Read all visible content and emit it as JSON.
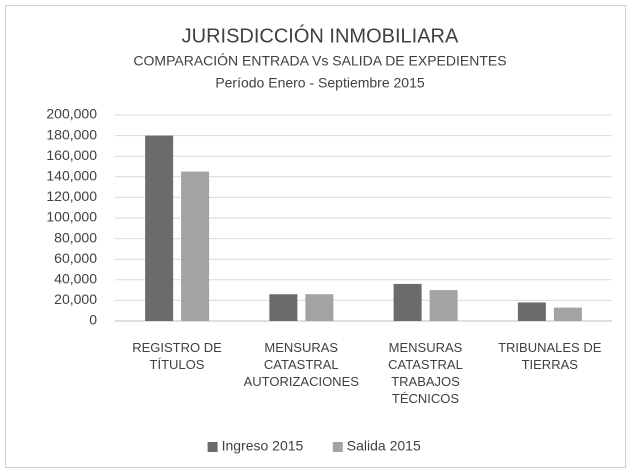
{
  "chart_data": {
    "type": "bar",
    "title": "JURISDICCIÓN INMOBILIARA",
    "subtitle": "COMPARACIÓN ENTRADA Vs SALIDA DE EXPEDIENTES",
    "subtitle2": "Período Enero - Septiembre 2015",
    "categories": [
      "REGISTRO DE\nTÍTULOS",
      "MENSURAS\nCATASTRAL\nAUTORIZACIONES",
      "MENSURAS\nCATASTRAL\nTRABAJOS\nTÉCNICOS",
      "TRIBUNALES DE\nTIERRAS"
    ],
    "series": [
      {
        "name": "Ingreso 2015",
        "color": "#6b6b6b",
        "values": [
          180000,
          26000,
          36000,
          18000
        ]
      },
      {
        "name": "Salida 2015",
        "color": "#a3a3a3",
        "values": [
          145000,
          26000,
          30000,
          13000
        ]
      }
    ],
    "ylim": [
      0,
      200000
    ],
    "yticks": [
      0,
      {
        "value": 20000,
        "label": "20,000"
      },
      {
        "value": 40000,
        "label": "40,000"
      },
      {
        "value": 60000,
        "label": "60,000"
      },
      {
        "value": 80000,
        "label": "80,000"
      },
      {
        "value": 100000,
        "label": "100,000"
      },
      {
        "value": 120000,
        "label": "120,000"
      },
      {
        "value": 140000,
        "label": "140,000"
      },
      {
        "value": 160000,
        "label": "160,000"
      },
      {
        "value": 180000,
        "label": "180,000"
      },
      {
        "value": 200000,
        "label": "200,000"
      }
    ],
    "grid": true,
    "legend": "bottom"
  }
}
